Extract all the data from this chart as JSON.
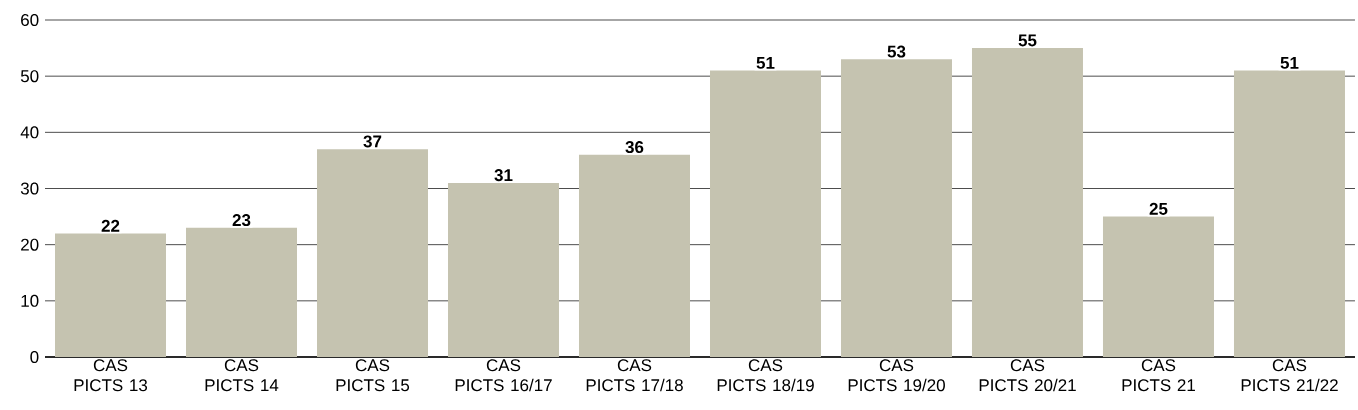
{
  "chart_data": {
    "type": "bar",
    "categories": [
      "CAS PICTS 13",
      "CAS PICTS 14",
      "CAS PICTS 15",
      "CAS PICTS 16/17",
      "CAS PICTS 17/18",
      "CAS PICTS 18/19",
      "CAS PICTS 19/20",
      "CAS PICTS 20/21",
      "CAS PICTS 21",
      "CAS PICTS 21/22"
    ],
    "values": [
      22,
      23,
      37,
      31,
      36,
      51,
      53,
      55,
      25,
      51
    ],
    "color": "#c5c3b0",
    "ylim": [
      0,
      60
    ],
    "yticks": [
      0,
      10,
      20,
      30,
      40,
      50,
      60
    ],
    "grid": "y",
    "data_labels": true
  }
}
